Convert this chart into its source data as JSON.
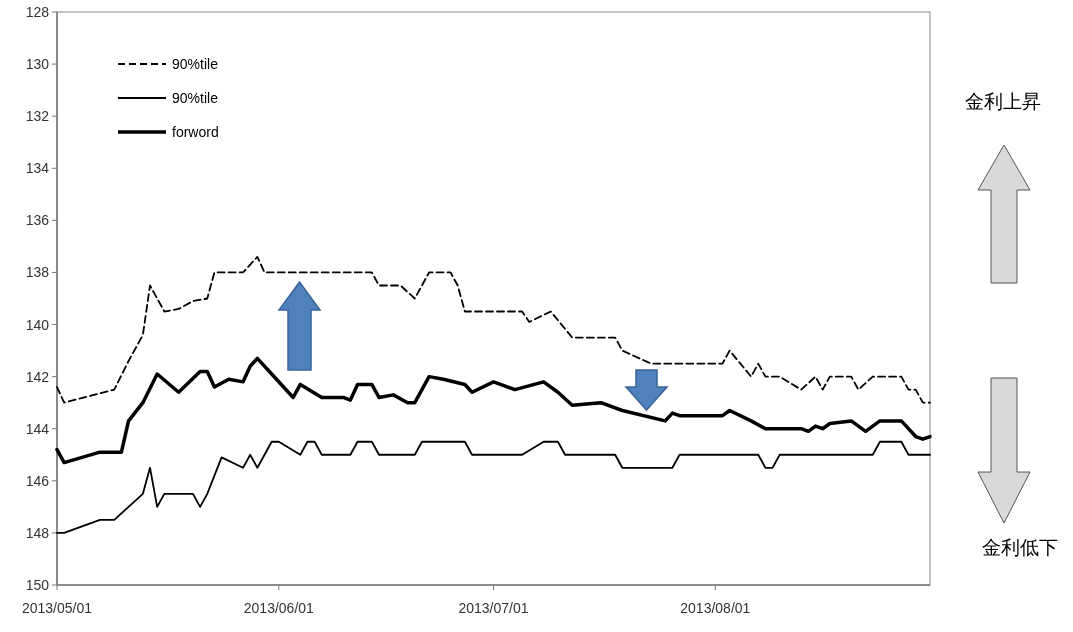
{
  "chart_data": {
    "type": "line",
    "xlim": [
      "2013-05-01",
      "2013-08-31"
    ],
    "xticks": [
      {
        "value": "2013-05-01",
        "label": "2013/05/01"
      },
      {
        "value": "2013-06-01",
        "label": "2013/06/01"
      },
      {
        "value": "2013-07-01",
        "label": "2013/07/01"
      },
      {
        "value": "2013-08-01",
        "label": "2013/08/01"
      }
    ],
    "ylim": [
      150,
      128
    ],
    "yticks": [
      128,
      130,
      132,
      134,
      136,
      138,
      140,
      142,
      144,
      146,
      148,
      150
    ],
    "legend": "top left",
    "grid": false,
    "marker": "none",
    "annotations": [
      "金利上昇",
      "金利低下"
    ],
    "series": [
      {
        "name": "90%tile",
        "color": "#000000",
        "line_style": "dashed",
        "x": [
          "2013-05-01",
          "2013-05-02",
          "2013-05-09",
          "2013-05-11",
          "2013-05-13",
          "2013-05-14",
          "2013-05-16",
          "2013-05-18",
          "2013-05-20",
          "2013-05-22",
          "2013-05-23",
          "2013-05-27",
          "2013-05-29",
          "2013-05-30",
          "2013-06-14",
          "2013-06-15",
          "2013-06-18",
          "2013-06-20",
          "2013-06-22",
          "2013-06-25",
          "2013-06-26",
          "2013-06-27",
          "2013-07-05",
          "2013-07-06",
          "2013-07-09",
          "2013-07-12",
          "2013-07-18",
          "2013-07-19",
          "2013-07-23",
          "2013-08-02",
          "2013-08-03",
          "2013-08-06",
          "2013-08-07",
          "2013-08-08",
          "2013-08-10",
          "2013-08-13",
          "2013-08-15",
          "2013-08-16",
          "2013-08-17",
          "2013-08-20",
          "2013-08-21",
          "2013-08-23",
          "2013-08-27",
          "2013-08-28",
          "2013-08-29",
          "2013-08-30",
          "2013-08-31"
        ],
        "values": [
          142.4,
          143.0,
          142.5,
          141.4,
          140.4,
          138.5,
          139.5,
          139.4,
          139.1,
          139.0,
          138.0,
          138.0,
          137.4,
          138.0,
          138.0,
          138.5,
          138.5,
          139.0,
          138.0,
          138.0,
          138.5,
          139.5,
          139.5,
          139.9,
          139.5,
          140.5,
          140.5,
          141.0,
          141.5,
          141.5,
          141.0,
          142.0,
          141.5,
          142.0,
          142.0,
          142.5,
          142.0,
          142.5,
          142.0,
          142.0,
          142.5,
          142.0,
          142.0,
          142.5,
          142.5,
          143.0,
          143.0
        ]
      },
      {
        "name": "90%tile",
        "color": "#000000",
        "line_style": "solid",
        "x": [
          "2013-05-01",
          "2013-05-02",
          "2013-05-07",
          "2013-05-09",
          "2013-05-11",
          "2013-05-13",
          "2013-05-14",
          "2013-05-15",
          "2013-05-16",
          "2013-05-20",
          "2013-05-21",
          "2013-05-22",
          "2013-05-24",
          "2013-05-27",
          "2013-05-28",
          "2013-05-29",
          "2013-05-31",
          "2013-06-01",
          "2013-06-04",
          "2013-06-05",
          "2013-06-06",
          "2013-06-07",
          "2013-06-11",
          "2013-06-12",
          "2013-06-14",
          "2013-06-15",
          "2013-06-20",
          "2013-06-21",
          "2013-06-27",
          "2013-06-28",
          "2013-07-05",
          "2013-07-08",
          "2013-07-10",
          "2013-07-11",
          "2013-07-18",
          "2013-07-19",
          "2013-07-26",
          "2013-07-27",
          "2013-08-07",
          "2013-08-08",
          "2013-08-09",
          "2013-08-10",
          "2013-08-23",
          "2013-08-24",
          "2013-08-27",
          "2013-08-28",
          "2013-08-31"
        ],
        "values": [
          148.0,
          148.0,
          147.5,
          147.5,
          147.0,
          146.5,
          145.5,
          147.0,
          146.5,
          146.5,
          147.0,
          146.5,
          145.1,
          145.5,
          145.0,
          145.5,
          144.5,
          144.5,
          145.0,
          144.5,
          144.5,
          145.0,
          145.0,
          144.5,
          144.5,
          145.0,
          145.0,
          144.5,
          144.5,
          145.0,
          145.0,
          144.5,
          144.5,
          145.0,
          145.0,
          145.5,
          145.5,
          145.0,
          145.0,
          145.5,
          145.5,
          145.0,
          145.0,
          144.5,
          144.5,
          145.0,
          145.0
        ]
      },
      {
        "name": "forword",
        "color": "#000000",
        "line_style": "solid",
        "x": [
          "2013-05-01",
          "2013-05-02",
          "2013-05-07",
          "2013-05-10",
          "2013-05-11",
          "2013-05-13",
          "2013-05-15",
          "2013-05-18",
          "2013-05-21",
          "2013-05-22",
          "2013-05-23",
          "2013-05-25",
          "2013-05-27",
          "2013-05-28",
          "2013-05-29",
          "2013-05-31",
          "2013-06-03",
          "2013-06-04",
          "2013-06-07",
          "2013-06-10",
          "2013-06-11",
          "2013-06-12",
          "2013-06-14",
          "2013-06-15",
          "2013-06-17",
          "2013-06-19",
          "2013-06-20",
          "2013-06-22",
          "2013-06-24",
          "2013-06-27",
          "2013-06-28",
          "2013-07-01",
          "2013-07-04",
          "2013-07-08",
          "2013-07-10",
          "2013-07-12",
          "2013-07-16",
          "2013-07-19",
          "2013-07-25",
          "2013-07-26",
          "2013-07-27",
          "2013-08-02",
          "2013-08-03",
          "2013-08-06",
          "2013-08-08",
          "2013-08-13",
          "2013-08-14",
          "2013-08-15",
          "2013-08-16",
          "2013-08-17",
          "2013-08-20",
          "2013-08-22",
          "2013-08-24",
          "2013-08-27",
          "2013-08-29",
          "2013-08-30",
          "2013-08-31"
        ],
        "values": [
          144.8,
          145.3,
          144.9,
          144.9,
          143.7,
          143.0,
          141.9,
          142.6,
          141.8,
          141.8,
          142.4,
          142.1,
          142.2,
          141.6,
          141.3,
          141.9,
          142.8,
          142.3,
          142.8,
          142.8,
          142.9,
          142.3,
          142.3,
          142.8,
          142.7,
          143.0,
          143.0,
          142.0,
          142.1,
          142.3,
          142.6,
          142.2,
          142.5,
          142.2,
          142.6,
          143.1,
          143.0,
          143.3,
          143.7,
          143.4,
          143.5,
          143.5,
          143.3,
          143.7,
          144.0,
          144.0,
          144.1,
          143.9,
          144.0,
          143.8,
          143.7,
          144.1,
          143.7,
          143.7,
          144.3,
          144.4,
          144.3
        ]
      }
    ]
  }
}
